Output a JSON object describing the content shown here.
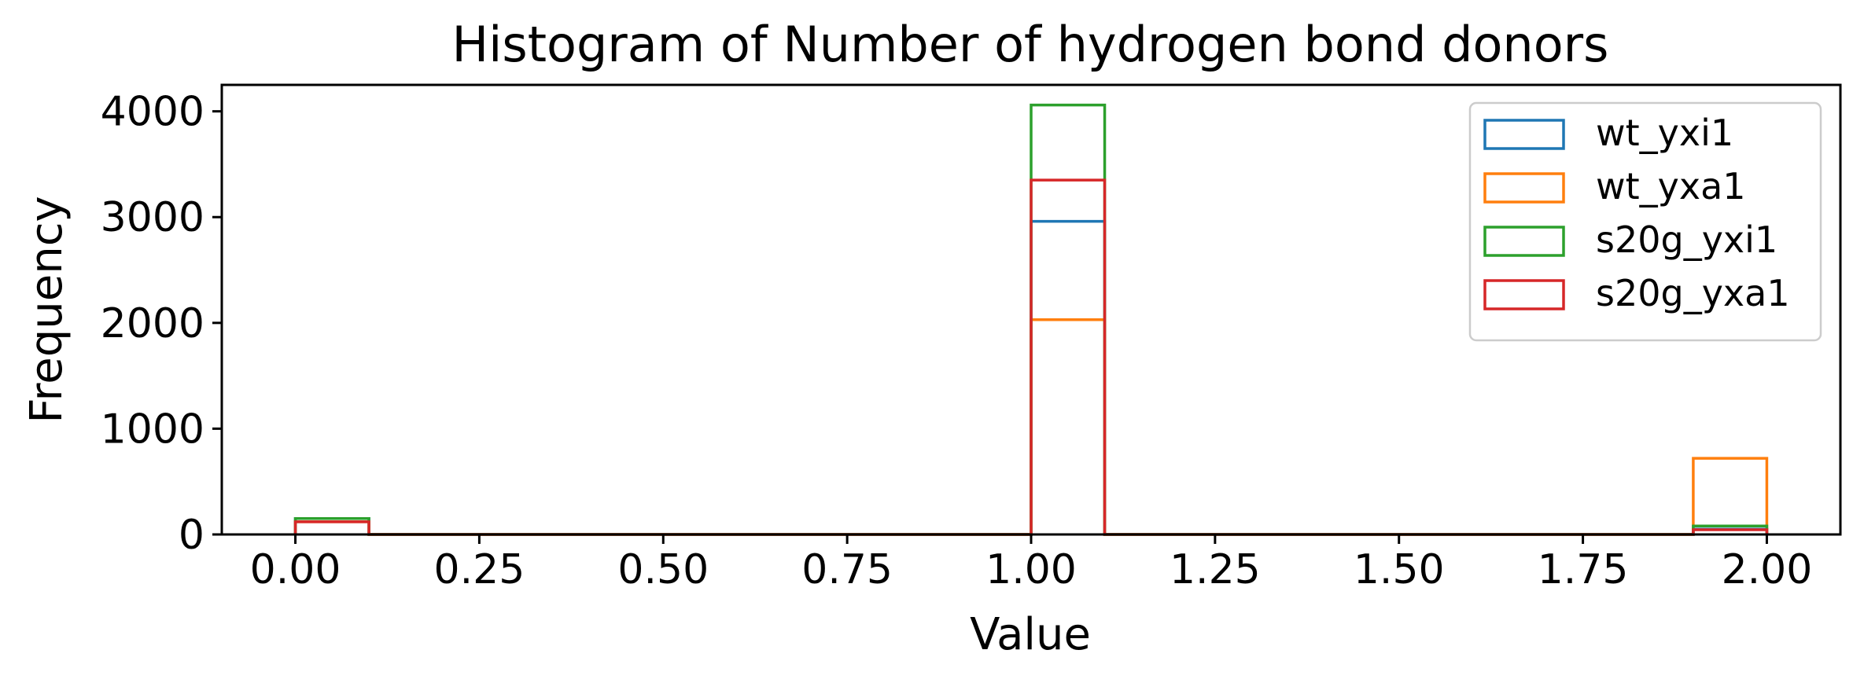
{
  "chart_data": {
    "type": "bar",
    "histtype": "step",
    "title": "Histogram of Number of hydrogen bond donors",
    "xlabel": "Value",
    "ylabel": "Frequency",
    "xlim": [
      -0.1,
      2.1
    ],
    "ylim": [
      0,
      4250
    ],
    "grid": false,
    "legend_position": "top-right",
    "bin_edges": [
      0.0,
      0.1,
      0.2,
      0.3,
      0.4,
      0.5,
      0.6,
      0.7,
      0.8,
      0.9,
      1.0,
      1.1,
      1.2,
      1.3,
      1.4,
      1.5,
      1.6,
      1.7,
      1.8,
      1.9,
      2.0
    ],
    "xticks": [
      "0.00",
      "0.25",
      "0.50",
      "0.75",
      "1.00",
      "1.25",
      "1.50",
      "1.75",
      "2.00"
    ],
    "yticks": [
      "0",
      "1000",
      "2000",
      "3000",
      "4000"
    ],
    "series": [
      {
        "name": "wt_yxi1",
        "color": "#1f77b4",
        "values": [
          150,
          0,
          0,
          0,
          0,
          0,
          0,
          0,
          0,
          0,
          2960,
          0,
          0,
          0,
          0,
          0,
          0,
          0,
          0,
          50
        ]
      },
      {
        "name": "wt_yxa1",
        "color": "#ff7f0e",
        "values": [
          120,
          0,
          0,
          0,
          0,
          0,
          0,
          0,
          0,
          0,
          2030,
          0,
          0,
          0,
          0,
          0,
          0,
          0,
          0,
          720
        ]
      },
      {
        "name": "s20g_yxi1",
        "color": "#2ca02c",
        "values": [
          150,
          0,
          0,
          0,
          0,
          0,
          0,
          0,
          0,
          0,
          4060,
          0,
          0,
          0,
          0,
          0,
          0,
          0,
          0,
          80
        ]
      },
      {
        "name": "s20g_yxa1",
        "color": "#d62728",
        "values": [
          120,
          0,
          0,
          0,
          0,
          0,
          0,
          0,
          0,
          0,
          3350,
          0,
          0,
          0,
          0,
          0,
          0,
          0,
          0,
          45
        ]
      }
    ]
  }
}
